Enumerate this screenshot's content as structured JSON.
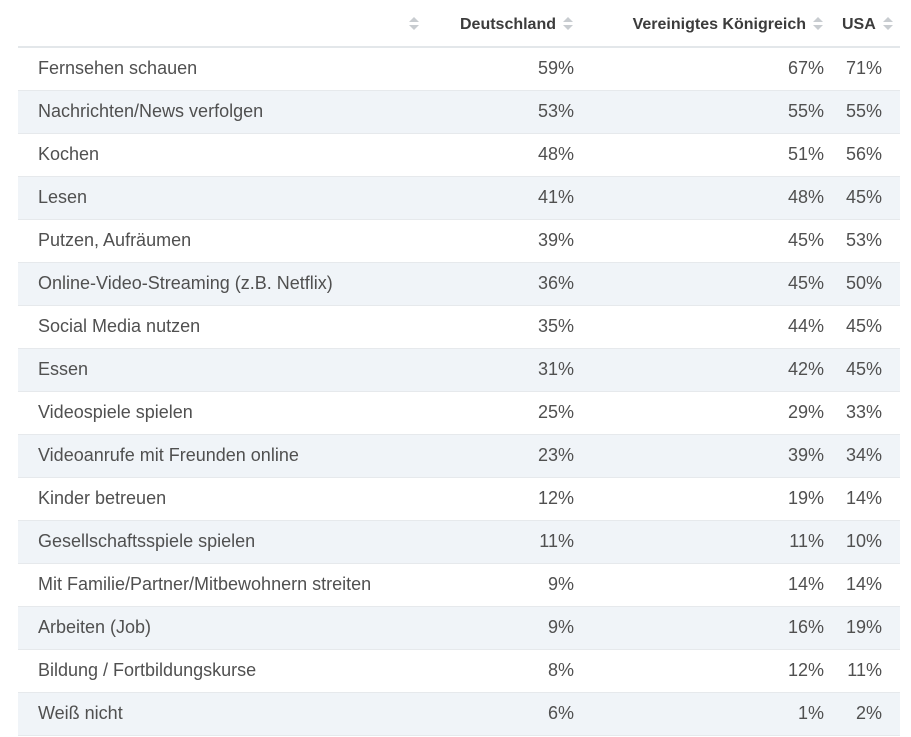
{
  "table": {
    "columns": [
      "Deutschland",
      "Vereinigtes Königreich",
      "USA"
    ],
    "rows": [
      {
        "label": "Fernsehen schauen",
        "de": "59%",
        "uk": "67%",
        "us": "71%"
      },
      {
        "label": "Nachrichten/News verfolgen",
        "de": "53%",
        "uk": "55%",
        "us": "55%"
      },
      {
        "label": "Kochen",
        "de": "48%",
        "uk": "51%",
        "us": "56%"
      },
      {
        "label": "Lesen",
        "de": "41%",
        "uk": "48%",
        "us": "45%"
      },
      {
        "label": "Putzen, Aufräumen",
        "de": "39%",
        "uk": "45%",
        "us": "53%"
      },
      {
        "label": "Online-Video-Streaming (z.B. Netflix)",
        "de": "36%",
        "uk": "45%",
        "us": "50%"
      },
      {
        "label": "Social Media nutzen",
        "de": "35%",
        "uk": "44%",
        "us": "45%"
      },
      {
        "label": "Essen",
        "de": "31%",
        "uk": "42%",
        "us": "45%"
      },
      {
        "label": "Videospiele spielen",
        "de": "25%",
        "uk": "29%",
        "us": "33%"
      },
      {
        "label": "Videoanrufe mit Freunden online",
        "de": "23%",
        "uk": "39%",
        "us": "34%"
      },
      {
        "label": "Kinder betreuen",
        "de": "12%",
        "uk": "19%",
        "us": "14%"
      },
      {
        "label": "Gesellschaftsspiele spielen",
        "de": "11%",
        "uk": "11%",
        "us": "10%"
      },
      {
        "label": "Mit Familie/Partner/Mitbewohnern streiten",
        "de": "9%",
        "uk": "14%",
        "us": "14%"
      },
      {
        "label": "Arbeiten (Job)",
        "de": "9%",
        "uk": "16%",
        "us": "19%"
      },
      {
        "label": "Bildung / Fortbildungskurse",
        "de": "8%",
        "uk": "12%",
        "us": "11%"
      },
      {
        "label": "Weiß nicht",
        "de": "6%",
        "uk": "1%",
        "us": "2%"
      }
    ]
  },
  "icons": {
    "sort": "sort-icon"
  },
  "colors": {
    "row_alt": "#f0f4f8",
    "border": "#e3e7ea",
    "text": "#505050",
    "sort_icon": "#c8ccd0"
  }
}
